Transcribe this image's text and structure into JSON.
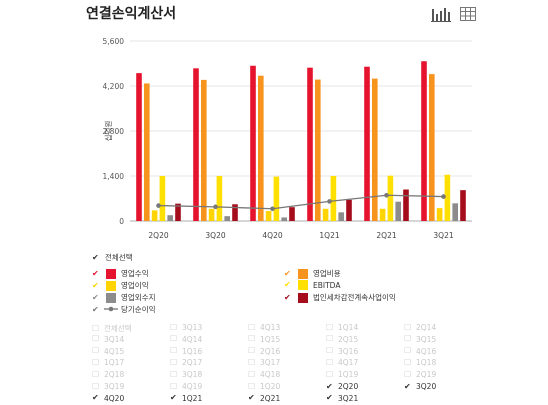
{
  "page": {
    "title": "연결손익계산서"
  },
  "toolbar": {
    "chart_view_icon": "bar-chart-icon",
    "table_view_icon": "table-icon"
  },
  "chart_data": {
    "type": "bar",
    "title": "",
    "ylabel": "십억원",
    "ylim": [
      0,
      5600
    ],
    "yticks": [
      0,
      1400,
      2800,
      4200,
      5600
    ],
    "ytick_labels": [
      "0",
      "1,400",
      "2,800",
      "4,200",
      "5,600"
    ],
    "categories": [
      "2Q20",
      "3Q20",
      "4Q20",
      "1Q21",
      "2Q21",
      "3Q21"
    ],
    "series": [
      {
        "name": "영업수익",
        "type": "bar",
        "color": "#e5132d",
        "values": [
          4600,
          4750,
          4830,
          4770,
          4800,
          4970
        ]
      },
      {
        "name": "영업비용",
        "type": "bar",
        "color": "#f7941d",
        "values": [
          4280,
          4390,
          4520,
          4400,
          4430,
          4570
        ]
      },
      {
        "name": "영업이익",
        "type": "bar",
        "color": "#ffd400",
        "values": [
          330,
          380,
          310,
          380,
          380,
          400
        ]
      },
      {
        "name": "EBITDA",
        "type": "bar",
        "color": "#ffe000",
        "values": [
          1400,
          1400,
          1380,
          1400,
          1410,
          1440
        ]
      },
      {
        "name": "영업외수지",
        "type": "bar",
        "color": "#8c8c8c",
        "values": [
          180,
          150,
          110,
          270,
          600,
          550
        ]
      },
      {
        "name": "법인세차감전계속사업이익",
        "type": "bar",
        "color": "#a50d1c",
        "values": [
          540,
          520,
          430,
          660,
          980,
          960
        ]
      },
      {
        "name": "당기순이익",
        "type": "line",
        "color": "#777777",
        "values": [
          480,
          440,
          380,
          610,
          800,
          760
        ]
      }
    ]
  },
  "legend": {
    "select_all": "전체선택",
    "items": [
      "영업수익",
      "영업비용",
      "영업이익",
      "EBITDA",
      "영업외수지",
      "법인세차감전계속사업이익",
      "당기순이익"
    ]
  },
  "periods": {
    "select_all": "전체선택",
    "columns": [
      [
        "3Q14",
        "4Q15",
        "1Q17",
        "2Q18",
        "3Q19",
        "4Q20"
      ],
      [
        "3Q13",
        "4Q14",
        "1Q16",
        "2Q17",
        "3Q18",
        "4Q19",
        "1Q21"
      ],
      [
        "4Q13",
        "1Q15",
        "2Q16",
        "3Q17",
        "4Q18",
        "1Q20",
        "2Q21"
      ],
      [
        "1Q14",
        "2Q15",
        "3Q16",
        "4Q17",
        "1Q19",
        "2Q20",
        "3Q21"
      ],
      [
        "2Q14",
        "3Q15",
        "4Q16",
        "1Q18",
        "2Q19",
        "3Q20"
      ]
    ],
    "selected": [
      "2Q20",
      "3Q20",
      "4Q20",
      "1Q21",
      "2Q21",
      "3Q21"
    ]
  }
}
